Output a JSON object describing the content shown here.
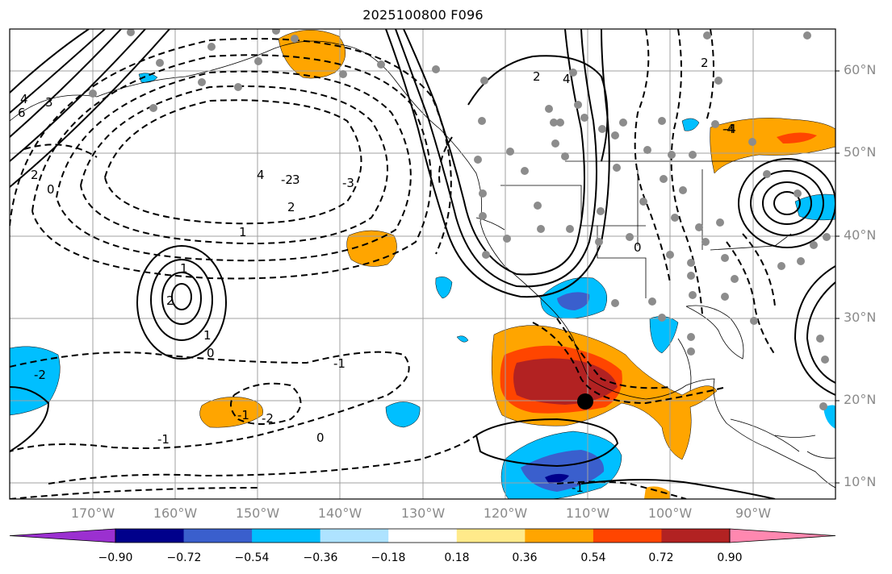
{
  "title": "2025100800 F096",
  "lat_labels": [
    "60°N",
    "50°N",
    "40°N",
    "30°N",
    "20°N",
    "10°N"
  ],
  "lon_labels": [
    "170°W",
    "160°W",
    "150°W",
    "140°W",
    "130°W",
    "120°W",
    "110°W",
    "100°W",
    "90°W"
  ],
  "contour_labels": [
    "4",
    "3",
    "2",
    "1",
    "0",
    "-1",
    "-2",
    "-3",
    "-4",
    "2",
    "4",
    "1",
    "-1",
    "0",
    "-1",
    "-2",
    "2",
    "0",
    "-1",
    "-2",
    "1",
    "2",
    "-4",
    "3",
    "6",
    "4",
    "2",
    "0"
  ],
  "colorbar": {
    "ticks": [
      "−0.90",
      "−0.72",
      "−0.54",
      "−0.36",
      "−0.18",
      "0.18",
      "0.36",
      "0.54",
      "0.72",
      "0.90"
    ],
    "colors": [
      "#9b30d0",
      "#00008b",
      "#3a5fcd",
      "#00bfff",
      "#aee3ff",
      "#ffffff",
      "#ffea8a",
      "#ffa500",
      "#ff4500",
      "#b22222",
      "#ff88b0"
    ]
  },
  "colors": {
    "warm1": "#ffa500",
    "warm2": "#ff4500",
    "warm3": "#b22222",
    "cool1": "#00bfff",
    "cool2": "#3a5fcd",
    "cool3": "#00008b",
    "station": "#8c8c8c",
    "grid": "#a0a0a0"
  }
}
